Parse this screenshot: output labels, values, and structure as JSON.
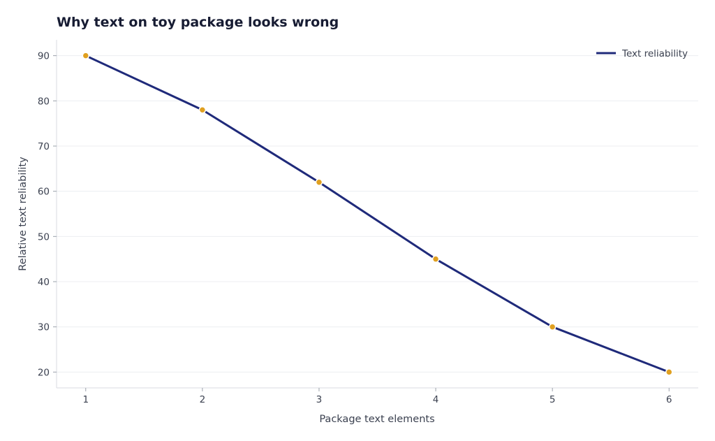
{
  "chart_data": {
    "type": "line",
    "title": "Why text on toy package looks wrong",
    "xlabel": "Package text elements",
    "ylabel": "Relative text reliability",
    "x": [
      1,
      2,
      3,
      4,
      5,
      6
    ],
    "xticks": [
      1,
      2,
      3,
      4,
      5,
      6
    ],
    "yticks": [
      20,
      30,
      40,
      50,
      60,
      70,
      80,
      90
    ],
    "xlim": [
      0.75,
      6.25
    ],
    "ylim": [
      16.5,
      93.5
    ],
    "grid": true,
    "legend_position": "top-right",
    "series": [
      {
        "name": "Text reliability",
        "values": [
          90,
          78,
          62,
          45,
          30,
          20
        ],
        "line_color": "#1f2a7a",
        "marker_color": "#e0a020"
      }
    ]
  }
}
